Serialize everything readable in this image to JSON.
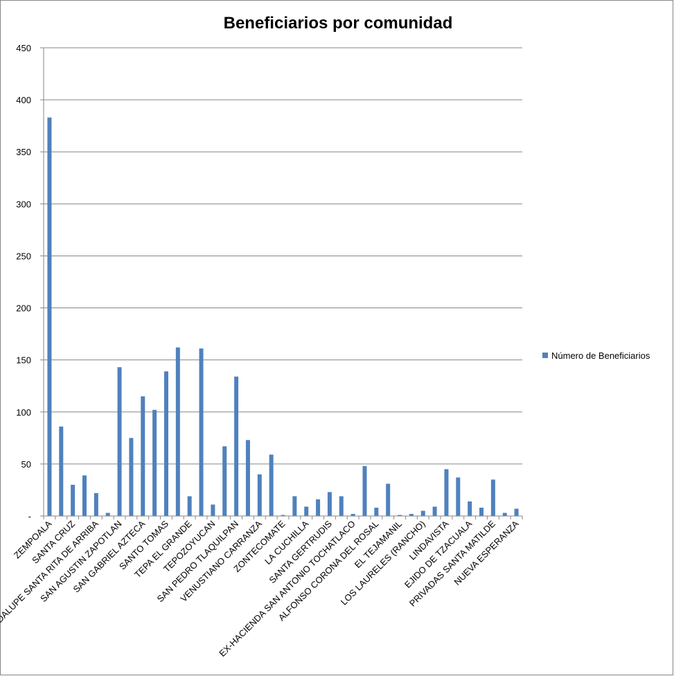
{
  "chart_data": {
    "type": "bar",
    "title": "Beneficiarios por comunidad",
    "xlabel": "",
    "ylabel": "",
    "ylim": [
      0,
      450
    ],
    "y_ticks": [
      "-",
      "50",
      "100",
      "150",
      "200",
      "250",
      "300",
      "350",
      "400",
      "450"
    ],
    "grid": true,
    "legend_position": "right",
    "categories": [
      "ZEMPOALA",
      "",
      "SANTA CRUZ",
      "",
      "GUADALUPE SANTA RITA DE ARRIBA",
      "",
      "SAN AGUSTIN ZAPOTLAN",
      "",
      "SAN GABRIEL AZTECA",
      "",
      "SANTO TOMAS",
      "",
      "TEPA EL GRANDE",
      "",
      "TEPOZOYUCAN",
      "",
      "SAN PEDRO TLAQUILPAN",
      "",
      "VENUSTIANO CARRANZA",
      "",
      "ZONTECOMATE",
      "",
      "LA CUCHILLA",
      "",
      "SANTA GERTRUDIS",
      "",
      "EX-HACIENDA SAN ANTONIO TOCHATLACO",
      "",
      "ALFONSO CORONA DEL ROSAL",
      "",
      "EL TEJAMANIL",
      "",
      "LOS LAURELES (RANCHO)",
      "",
      "LINDAVISTA",
      "",
      "EJIDO DE TZACUALA",
      "",
      "PRIVADAS SANTA MATILDE",
      "",
      "NUEVA ESPERANZA"
    ],
    "series": [
      {
        "name": "Número de Beneficiarios",
        "color": "#4f81bd",
        "values": [
          383,
          86,
          30,
          39,
          22,
          3,
          143,
          75,
          115,
          102,
          139,
          162,
          19,
          161,
          11,
          67,
          134,
          73,
          40,
          59,
          1,
          19,
          9,
          16,
          23,
          19,
          2,
          48,
          8,
          31,
          1,
          2,
          5,
          9,
          45,
          37,
          14,
          8,
          35,
          3,
          7
        ]
      }
    ]
  }
}
